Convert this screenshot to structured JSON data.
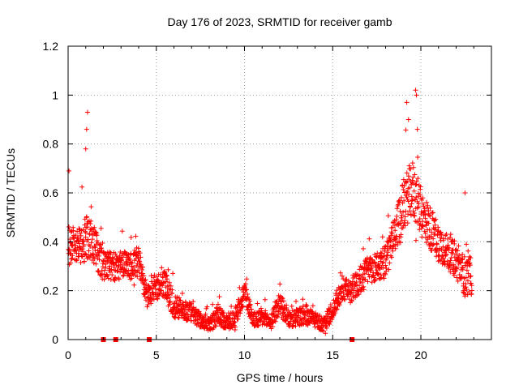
{
  "chart_data": {
    "type": "scatter",
    "title": "Day 176 of 2023, SRMTID for receiver gamb",
    "xlabel": "GPS time / hours",
    "ylabel": "SRMTID / TECUs",
    "xlim": [
      0,
      24
    ],
    "ylim": [
      0,
      1.2
    ],
    "xticks": [
      0,
      5,
      10,
      15,
      20
    ],
    "xtick_labels": [
      "0",
      "5",
      "10",
      "15",
      "20"
    ],
    "yticks": [
      0,
      0.2,
      0.4,
      0.6,
      0.8,
      1.0,
      1.2
    ],
    "ytick_labels": [
      "0",
      "0.2",
      "0.4",
      "0.6",
      "0.8",
      "1",
      "1.2"
    ],
    "grid": true,
    "marker": "plus",
    "color": "#ff0000",
    "series": [
      {
        "name": "SRMTID",
        "envelope": {
          "x": [
            0,
            0.5,
            1,
            1.5,
            2,
            2.5,
            3,
            3.5,
            4,
            4.5,
            5,
            5.5,
            6,
            6.5,
            7,
            7.5,
            8,
            8.5,
            9,
            9.5,
            10,
            10.5,
            11,
            11.5,
            12,
            12.5,
            13,
            13.5,
            14,
            14.5,
            15,
            15.5,
            16,
            16.5,
            17,
            17.5,
            18,
            18.5,
            19,
            19.5,
            20,
            20.5,
            21,
            21.5,
            22,
            22.5,
            23
          ],
          "y": [
            0.38,
            0.38,
            0.42,
            0.38,
            0.3,
            0.3,
            0.3,
            0.3,
            0.32,
            0.17,
            0.22,
            0.22,
            0.14,
            0.12,
            0.11,
            0.08,
            0.06,
            0.1,
            0.07,
            0.09,
            0.2,
            0.08,
            0.09,
            0.07,
            0.15,
            0.08,
            0.09,
            0.1,
            0.08,
            0.06,
            0.12,
            0.2,
            0.2,
            0.24,
            0.28,
            0.3,
            0.32,
            0.42,
            0.55,
            0.62,
            0.52,
            0.46,
            0.4,
            0.36,
            0.32,
            0.26,
            0.26
          ],
          "spread": [
            0.09,
            0.07,
            0.1,
            0.08,
            0.06,
            0.06,
            0.06,
            0.06,
            0.06,
            0.05,
            0.06,
            0.06,
            0.05,
            0.04,
            0.04,
            0.03,
            0.03,
            0.04,
            0.03,
            0.04,
            0.05,
            0.03,
            0.04,
            0.03,
            0.05,
            0.03,
            0.04,
            0.04,
            0.03,
            0.03,
            0.04,
            0.05,
            0.05,
            0.06,
            0.06,
            0.06,
            0.07,
            0.08,
            0.1,
            0.12,
            0.1,
            0.09,
            0.08,
            0.07,
            0.07,
            0.08,
            0.08
          ]
        },
        "notable_points": [
          {
            "x": 0.05,
            "y": 0.69
          },
          {
            "x": 1.1,
            "y": 0.93
          },
          {
            "x": 1.05,
            "y": 0.86
          },
          {
            "x": 1.0,
            "y": 0.78
          },
          {
            "x": 19.2,
            "y": 0.97
          },
          {
            "x": 19.3,
            "y": 0.9
          },
          {
            "x": 19.7,
            "y": 1.02
          },
          {
            "x": 19.75,
            "y": 1.0
          },
          {
            "x": 19.8,
            "y": 0.86
          },
          {
            "x": 22.5,
            "y": 0.6
          }
        ],
        "zero_markers_x": [
          2.0,
          2.7,
          4.6,
          16.1
        ]
      }
    ]
  }
}
